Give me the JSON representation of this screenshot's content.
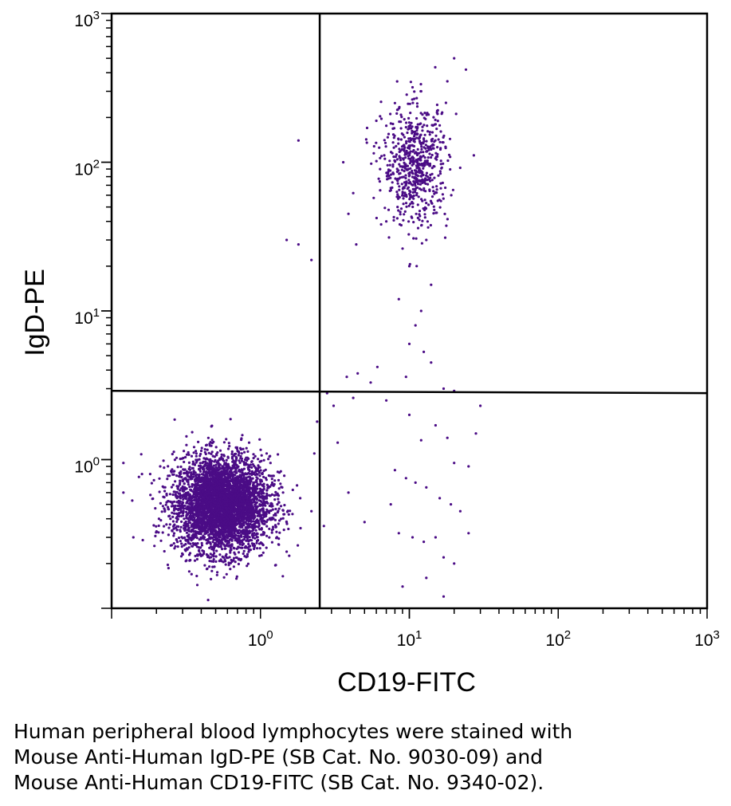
{
  "chart_data": {
    "type": "scatter",
    "title": "",
    "xlabel": "CD19-FITC",
    "ylabel": "IgD-PE",
    "xscale": "log",
    "yscale": "log",
    "xlim": [
      0.1,
      1000
    ],
    "ylim": [
      0.1,
      1000
    ],
    "x_ticks": [
      {
        "value": 1,
        "base": "10",
        "exp": "0"
      },
      {
        "value": 10,
        "base": "10",
        "exp": "1"
      },
      {
        "value": 100,
        "base": "10",
        "exp": "2"
      },
      {
        "value": 1000,
        "base": "10",
        "exp": "3"
      }
    ],
    "y_ticks": [
      {
        "value": 1,
        "base": "10",
        "exp": "0"
      },
      {
        "value": 10,
        "base": "10",
        "exp": "1"
      },
      {
        "value": 100,
        "base": "10",
        "exp": "2"
      },
      {
        "value": 1000,
        "base": "10",
        "exp": "3"
      }
    ],
    "grid": false,
    "quadrant_gates": {
      "x": 2.5,
      "y_left": 2.9,
      "y_right": 2.8
    },
    "point_color": "#4b0c86",
    "populations": [
      {
        "center_x": 0.55,
        "center_y": 0.5,
        "spread_x": 0.16,
        "spread_y": 0.16,
        "count": 4200
      },
      {
        "center_x": 11,
        "center_y": 95,
        "spread_x": 0.11,
        "spread_y": 0.2,
        "count": 650
      }
    ],
    "sparse_points": [
      [
        6.5,
        110
      ],
      [
        8,
        250
      ],
      [
        12,
        300
      ],
      [
        15,
        180
      ],
      [
        20,
        500
      ],
      [
        24,
        420
      ],
      [
        18,
        350
      ],
      [
        9,
        60
      ],
      [
        7,
        40
      ],
      [
        13,
        30
      ],
      [
        10,
        20
      ],
      [
        14,
        15
      ],
      [
        12,
        10
      ],
      [
        11,
        8
      ],
      [
        8.5,
        12
      ],
      [
        12.5,
        5.3
      ],
      [
        9.5,
        3.6
      ],
      [
        6.1,
        4.2
      ],
      [
        5.5,
        3.3
      ],
      [
        4.5,
        3.8
      ],
      [
        3.8,
        3.6
      ],
      [
        4.2,
        2.6
      ],
      [
        7,
        2.5
      ],
      [
        3.1,
        2.3
      ],
      [
        2.8,
        2.8
      ],
      [
        2.4,
        1.8
      ],
      [
        2.3,
        1.1
      ],
      [
        10,
        2
      ],
      [
        15,
        1.7
      ],
      [
        12,
        1.35
      ],
      [
        18,
        1.4
      ],
      [
        8,
        0.85
      ],
      [
        9.5,
        0.75
      ],
      [
        11,
        0.7
      ],
      [
        13,
        0.65
      ],
      [
        16,
        0.55
      ],
      [
        19,
        0.5
      ],
      [
        22,
        0.45
      ],
      [
        8.5,
        0.32
      ],
      [
        10.5,
        0.3
      ],
      [
        12.5,
        0.28
      ],
      [
        15,
        0.3
      ],
      [
        17,
        0.22
      ],
      [
        25,
        0.32
      ],
      [
        20,
        0.2
      ],
      [
        9,
        0.14
      ],
      [
        13,
        0.16
      ],
      [
        17,
        0.12
      ],
      [
        5,
        0.38
      ],
      [
        7.5,
        0.5
      ],
      [
        3.9,
        0.6
      ],
      [
        3.3,
        1.3
      ],
      [
        20,
        0.95
      ],
      [
        25,
        0.9
      ],
      [
        28,
        1.5
      ],
      [
        30,
        2.3
      ],
      [
        20,
        2.9
      ],
      [
        17,
        3
      ],
      [
        14,
        4.5
      ],
      [
        10,
        6
      ],
      [
        1.8,
        140
      ],
      [
        1.5,
        30
      ],
      [
        1.8,
        28
      ],
      [
        2.2,
        22
      ],
      [
        3.9,
        45
      ],
      [
        4.4,
        28
      ],
      [
        4.2,
        62
      ],
      [
        3.6,
        100
      ],
      [
        5.2,
        170
      ],
      [
        6,
        190
      ],
      [
        1.4,
        0.65
      ],
      [
        1.85,
        0.55
      ],
      [
        2.2,
        0.45
      ],
      [
        0.12,
        0.6
      ],
      [
        0.12,
        0.95
      ],
      [
        0.14,
        0.3
      ],
      [
        0.16,
        0.8
      ],
      [
        1.2,
        0.7
      ],
      [
        1.3,
        0.5
      ],
      [
        1.1,
        1.1
      ]
    ]
  },
  "caption": {
    "line1": "Human peripheral blood lymphocytes were stained with",
    "line2": "Mouse Anti-Human IgD-PE (SB Cat. No. 9030-09) and",
    "line3": "Mouse Anti-Human CD19-FITC (SB Cat. No. 9340-02)."
  }
}
